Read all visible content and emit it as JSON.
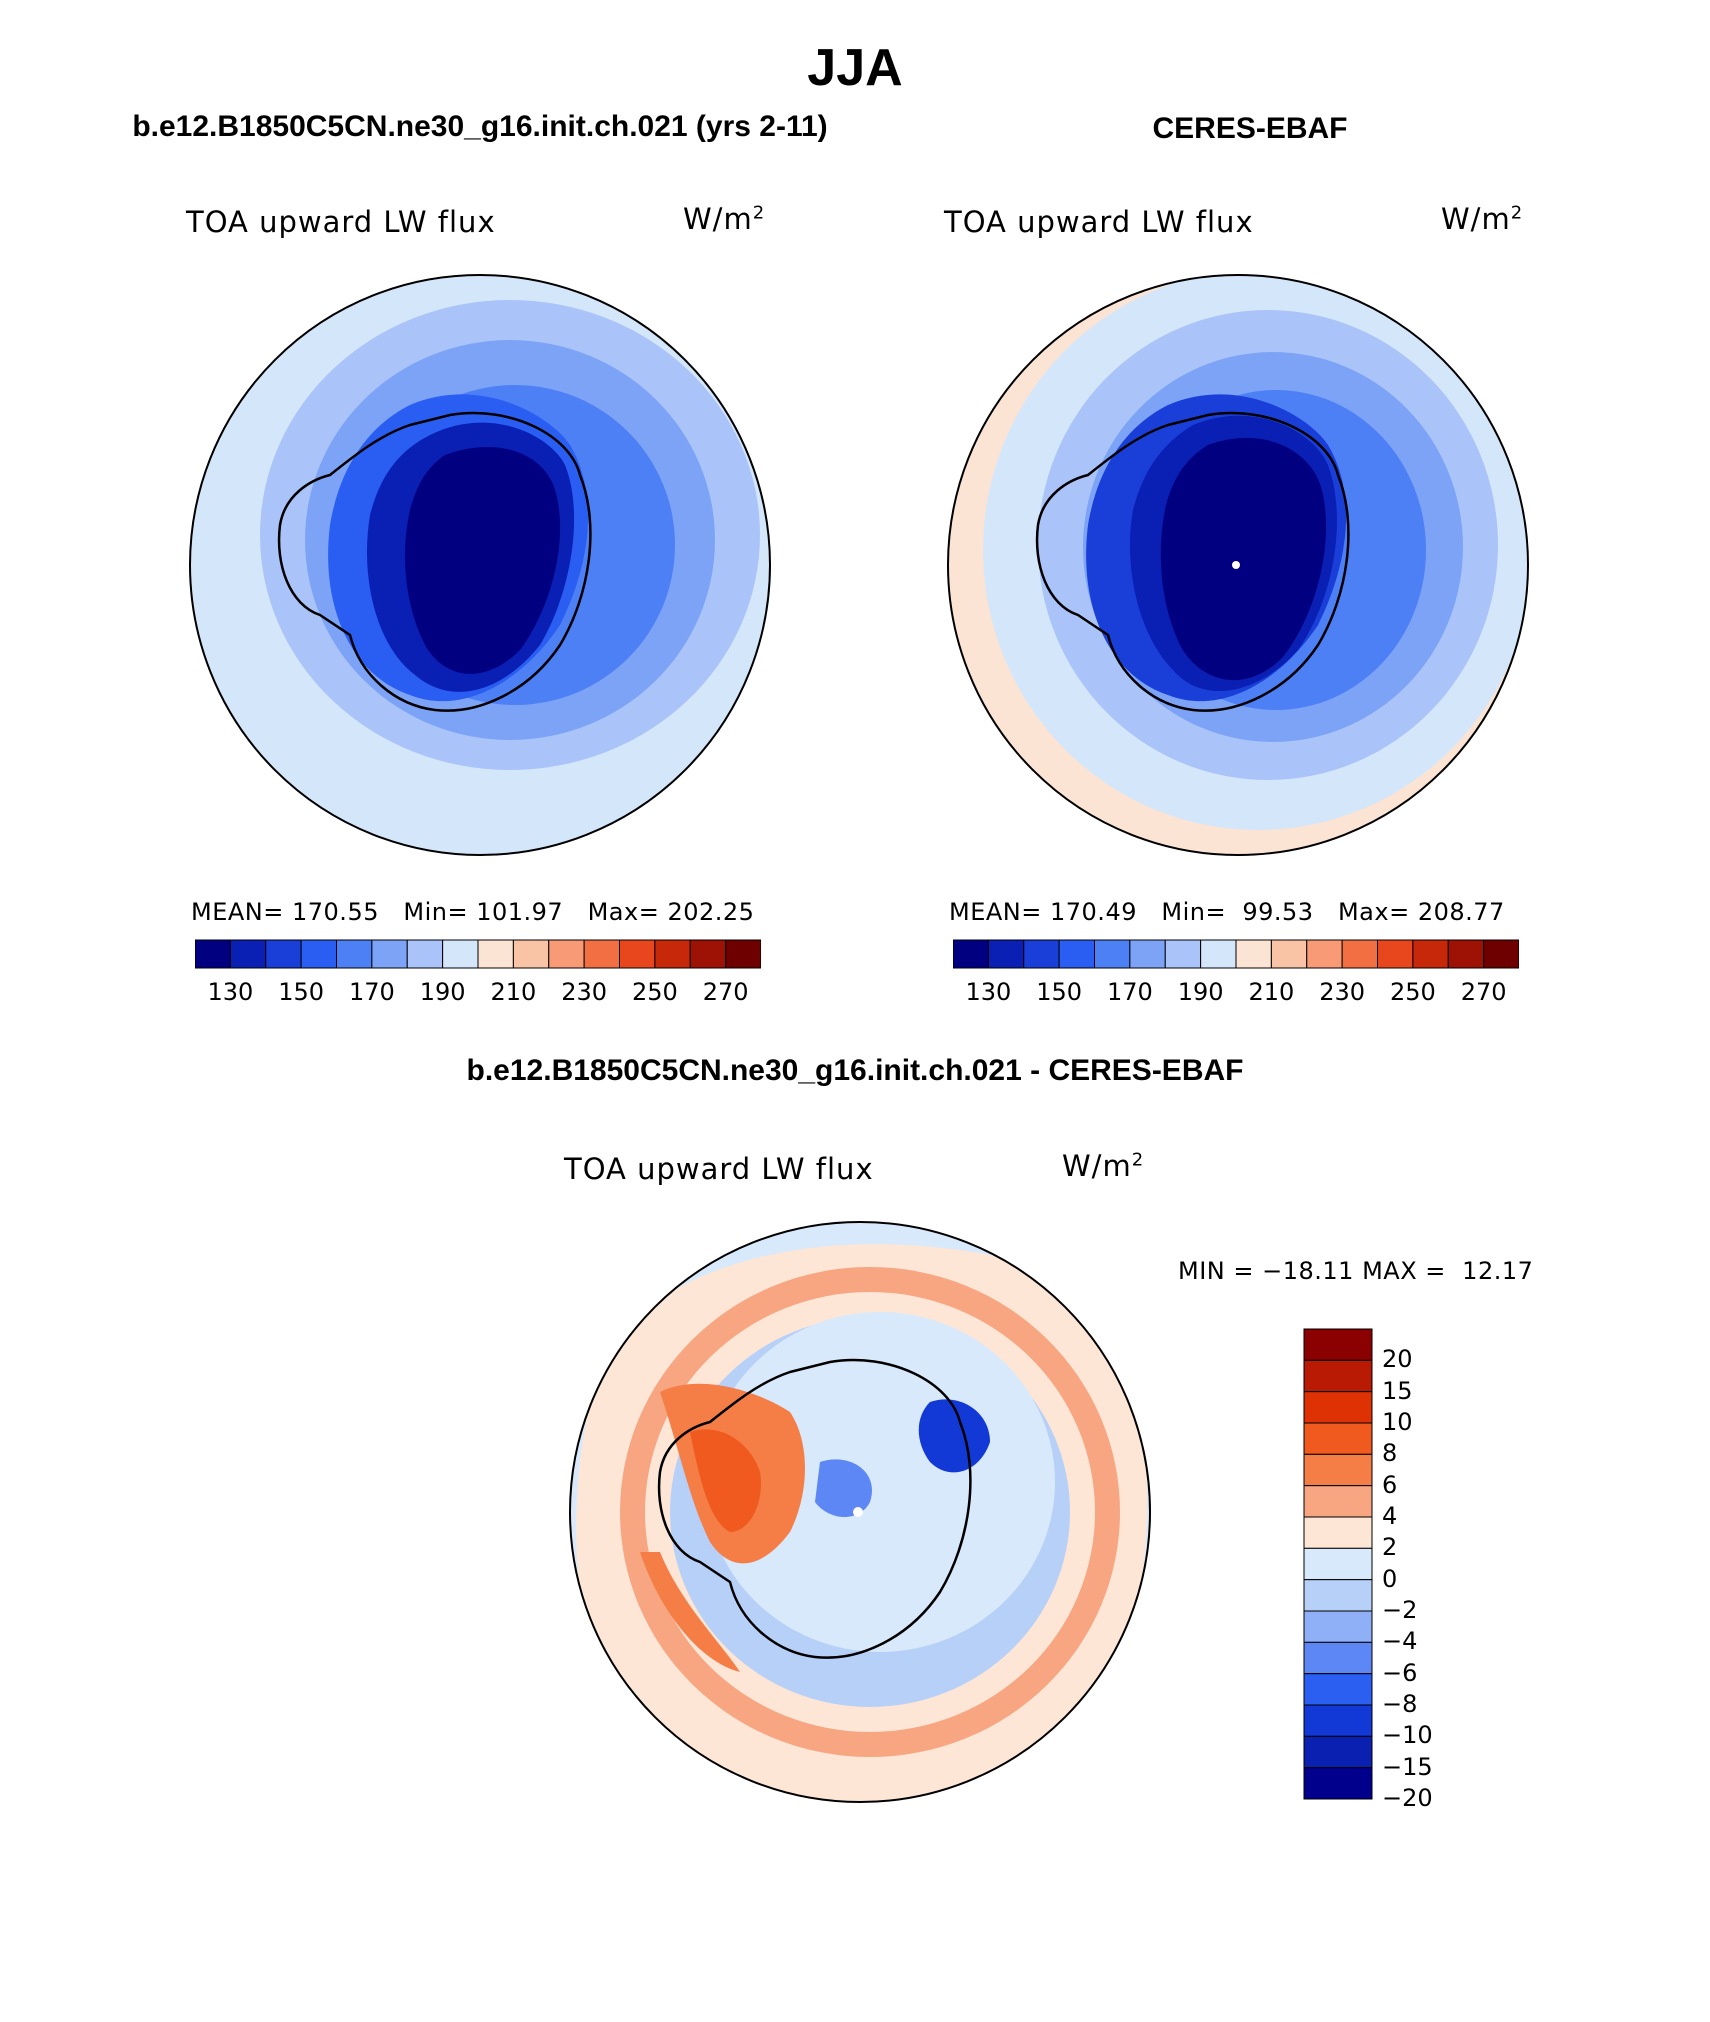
{
  "figure_title": "JJA",
  "panels": [
    {
      "title": "b.e12.B1850C5CN.ne30_g16.init.ch.021 (yrs 2-11)",
      "variable": "TOA upward LW flux",
      "units": "W/m",
      "units_exp": "2",
      "stats": {
        "mean_label": "MEAN=",
        "mean": "170.55",
        "min_label": "Min=",
        "min": "101.97",
        "max_label": "Max=",
        "max": "202.25"
      }
    },
    {
      "title": "CERES-EBAF",
      "variable": "TOA upward LW flux",
      "units": "W/m",
      "units_exp": "2",
      "stats": {
        "mean_label": "MEAN=",
        "mean": "170.49",
        "min_label": "Min=",
        "min": "99.53",
        "max_label": "Max=",
        "max": "208.77"
      }
    }
  ],
  "abs_colorbar": {
    "colors": [
      "#000080",
      "#0a1fb4",
      "#1a3fd9",
      "#2a5ef2",
      "#4d7ff5",
      "#7da3f7",
      "#aac4f9",
      "#d4e6fa",
      "#fbe4d4",
      "#f9c3a6",
      "#f79a75",
      "#f26f44",
      "#e8471e",
      "#c8280a",
      "#9e1206",
      "#6e0000"
    ],
    "tick_labels": [
      "130",
      "150",
      "170",
      "190",
      "210",
      "230",
      "250",
      "270"
    ]
  },
  "difference": {
    "title": "b.e12.B1850C5CN.ne30_g16.init.ch.021 - CERES-EBAF",
    "variable": "TOA upward LW flux",
    "units": "W/m",
    "units_exp": "2",
    "min_label": "MIN =",
    "min": "−18.11",
    "max_label": "MAX =",
    "max": "12.17",
    "colorbar": {
      "colors": [
        "#8b0000",
        "#b81a04",
        "#de3205",
        "#f05a1e",
        "#f57d46",
        "#f8a581",
        "#fde6d6",
        "#d7e9fb",
        "#b7d0f8",
        "#8fb0f6",
        "#5d87f4",
        "#2a5ff2",
        "#1238d6",
        "#0a20b0",
        "#00008c"
      ],
      "tick_labels": [
        "20",
        "15",
        "10",
        "8",
        "6",
        "4",
        "2",
        "0",
        "−2",
        "−4",
        "−6",
        "−8",
        "−10",
        "−15",
        "−20"
      ]
    }
  }
}
